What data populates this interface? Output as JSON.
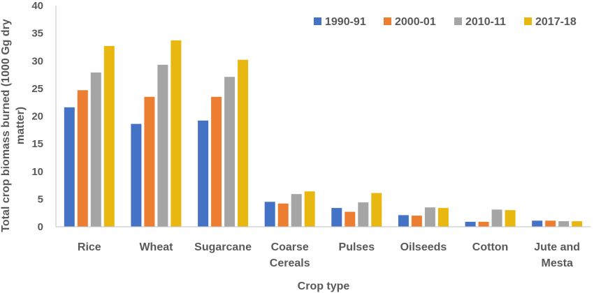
{
  "chart_data": {
    "type": "bar",
    "categories": [
      [
        "Rice"
      ],
      [
        "Wheat"
      ],
      [
        "Sugarcane"
      ],
      [
        "Coarse",
        "Cereals"
      ],
      [
        "Pulses"
      ],
      [
        "Oilseeds"
      ],
      [
        "Cotton"
      ],
      [
        "Jute and",
        "Mesta"
      ]
    ],
    "series": [
      {
        "name": "1990-91",
        "color": "#4472C4",
        "values": [
          21.6,
          18.6,
          19.2,
          4.5,
          3.4,
          2.1,
          0.9,
          1.1
        ]
      },
      {
        "name": "2000-01",
        "color": "#ED7D31",
        "values": [
          24.7,
          23.5,
          23.5,
          4.2,
          2.7,
          2.0,
          0.9,
          1.1
        ]
      },
      {
        "name": "2010-11",
        "color": "#A5A5A5",
        "values": [
          27.9,
          29.3,
          27.1,
          5.9,
          4.4,
          3.5,
          3.1,
          1.0
        ]
      },
      {
        "name": "2017-18",
        "color": "#E8B810",
        "values": [
          32.7,
          33.7,
          30.2,
          6.4,
          6.1,
          3.4,
          3.0,
          1.0
        ]
      }
    ],
    "xlabel": "Crop type",
    "ylabel": [
      "Total crop biomass burned (1000 Gg dry",
      "matter)"
    ],
    "ylim": [
      0,
      40
    ],
    "yticks": [
      0,
      5,
      10,
      15,
      20,
      25,
      30,
      35,
      40
    ],
    "grid": false,
    "legend_position": "top-right"
  }
}
